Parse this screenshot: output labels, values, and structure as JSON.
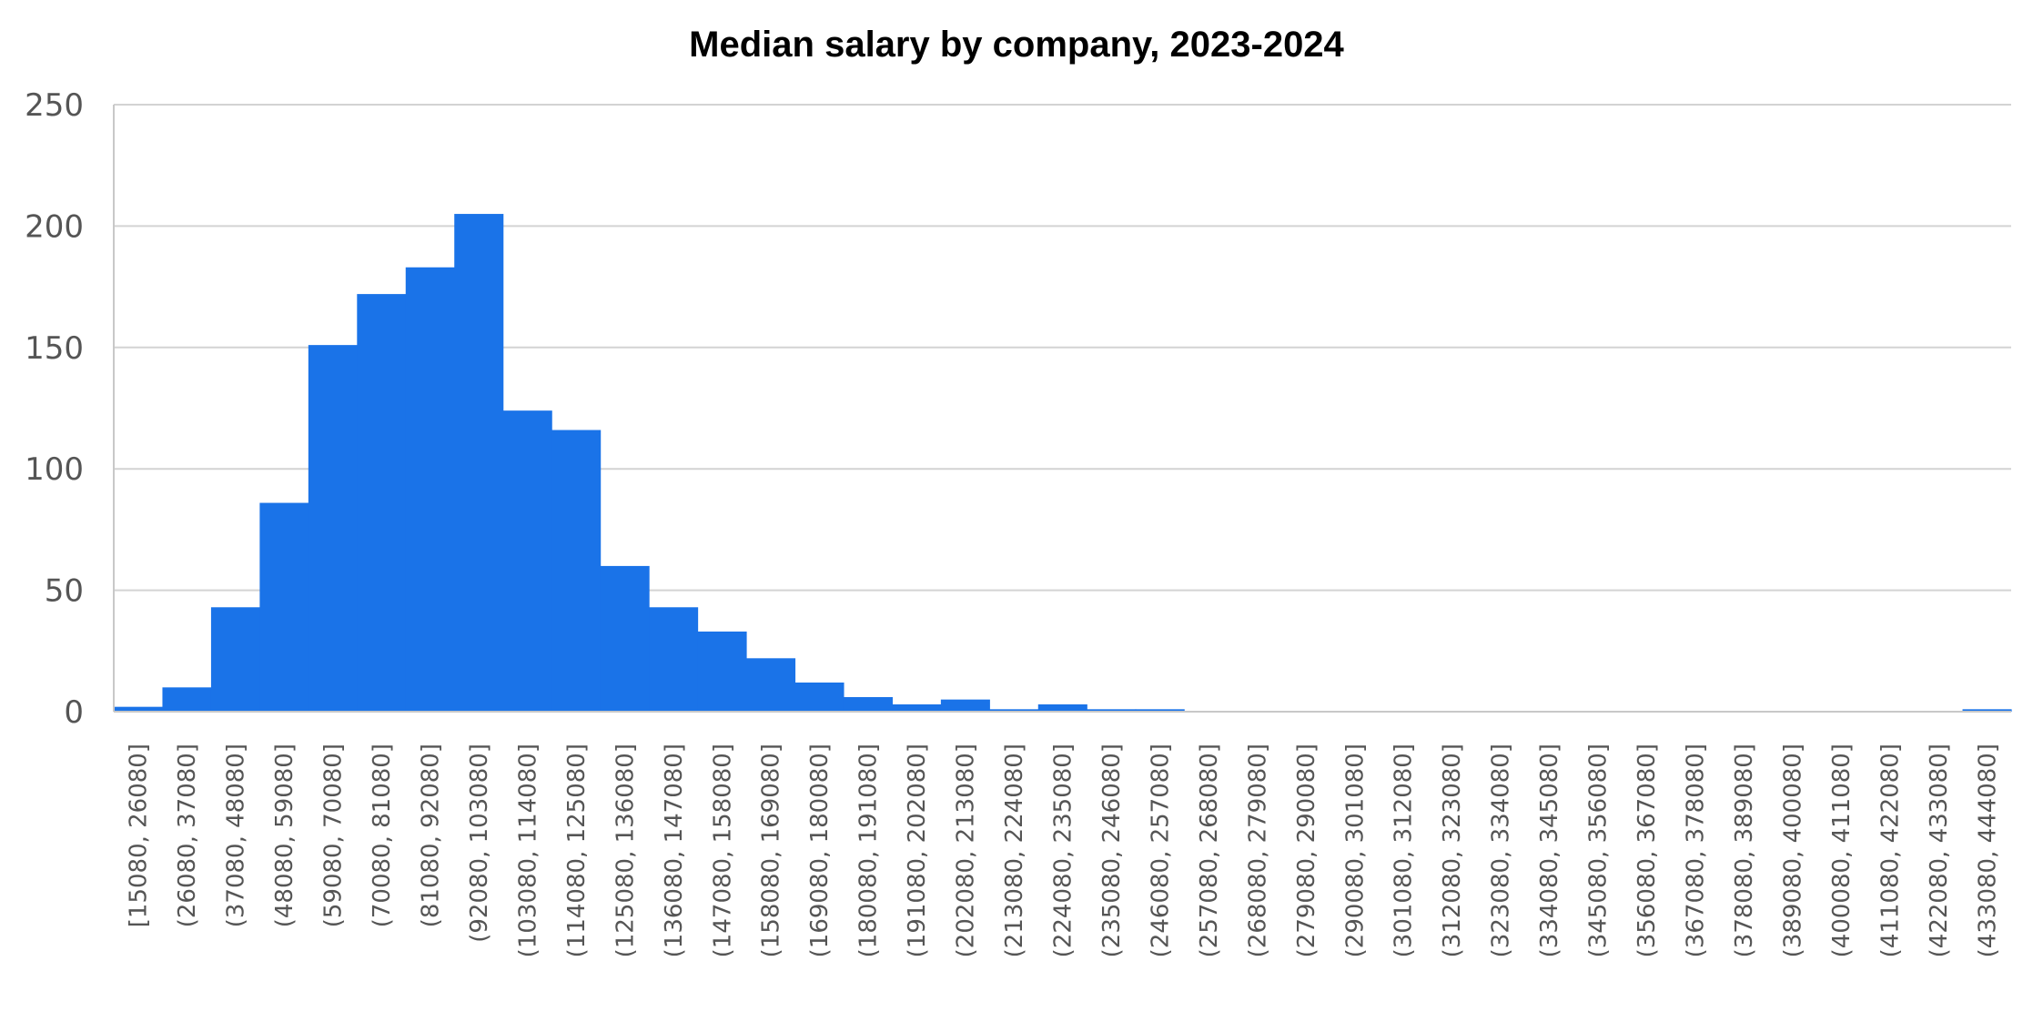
{
  "chart_data": {
    "type": "bar",
    "title": "Median salary by company, 2023-2024",
    "xlabel": "",
    "ylabel": "",
    "ylim": [
      0,
      250
    ],
    "yticks": [
      "0",
      "50",
      "100",
      "150",
      "200",
      "250"
    ],
    "grid": true,
    "bar_color": "#1a73e8",
    "categories": [
      "[15080, 26080]",
      "(26080, 37080]",
      "(37080, 48080]",
      "(48080, 59080]",
      "(59080, 70080]",
      "(70080, 81080]",
      "(81080, 92080]",
      "(92080, 103080]",
      "(103080, 114080]",
      "(114080, 125080]",
      "(125080, 136080]",
      "(136080, 147080]",
      "(147080, 158080]",
      "(158080, 169080]",
      "(169080, 180080]",
      "(180080, 191080]",
      "(191080, 202080]",
      "(202080, 213080]",
      "(213080, 224080]",
      "(224080, 235080]",
      "(235080, 246080]",
      "(246080, 257080]",
      "(257080, 268080]",
      "(268080, 279080]",
      "(279080, 290080]",
      "(290080, 301080]",
      "(301080, 312080]",
      "(312080, 323080]",
      "(323080, 334080]",
      "(334080, 345080]",
      "(345080, 356080]",
      "(356080, 367080]",
      "(367080, 378080]",
      "(378080, 389080]",
      "(389080, 400080]",
      "(400080, 411080]",
      "(411080, 422080]",
      "(422080, 433080]",
      "(433080, 444080]"
    ],
    "values": [
      2,
      10,
      43,
      86,
      151,
      172,
      183,
      205,
      124,
      116,
      60,
      43,
      33,
      22,
      12,
      6,
      3,
      5,
      1,
      3,
      1,
      1,
      0,
      0,
      0,
      0,
      0,
      0,
      0,
      0,
      0,
      0,
      0,
      0,
      0,
      0,
      0,
      0,
      1
    ]
  }
}
